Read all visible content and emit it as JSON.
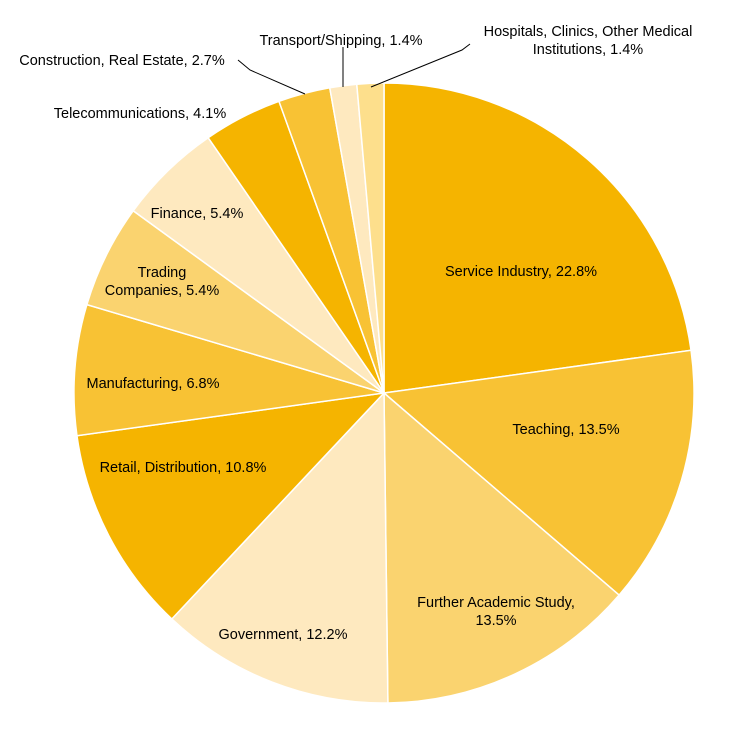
{
  "chart_data": {
    "type": "pie",
    "title": "",
    "slices": [
      {
        "label": "Service Industry, 22.8%",
        "value": 22.8,
        "color": "#F5B400"
      },
      {
        "label": "Teaching, 13.5%",
        "value": 13.5,
        "color": "#F8C234"
      },
      {
        "label": "Further Academic Study,|13.5%",
        "value": 13.5,
        "color": "#FAD36F"
      },
      {
        "label": "Government, 12.2%",
        "value": 12.2,
        "color": "#FEE9BF"
      },
      {
        "label": "Retail, Distribution, 10.8%",
        "value": 10.8,
        "color": "#F5B400"
      },
      {
        "label": "Manufacturing, 6.8%",
        "value": 6.8,
        "color": "#F8C234"
      },
      {
        "label": "Trading|Companies, 5.4%",
        "value": 5.4,
        "color": "#FAD36F"
      },
      {
        "label": "Finance, 5.4%",
        "value": 5.4,
        "color": "#FEE9BF"
      },
      {
        "label": "Telecommunications, 4.1%",
        "value": 4.1,
        "color": "#F5B400"
      },
      {
        "label": "Construction, Real Estate, 2.7%",
        "value": 2.7,
        "color": "#F8C234"
      },
      {
        "label": "Transport/Shipping, 1.4%",
        "value": 1.4,
        "color": "#FEE9BF"
      },
      {
        "label": "Hospitals, Clinics, Other Medical|Institutions, 1.4%",
        "value": 1.4,
        "color": "#FDDF8C"
      }
    ]
  }
}
